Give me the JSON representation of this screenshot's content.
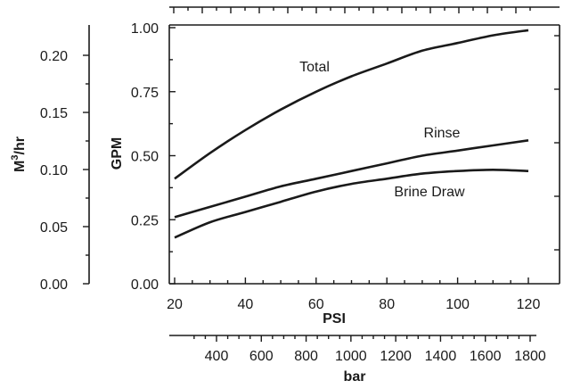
{
  "chart_data": {
    "type": "line",
    "xlabel": "PSI",
    "ylabel": "GPM",
    "xlim": [
      18,
      122
    ],
    "ylim": [
      0,
      1.0
    ],
    "x_ticks": [
      20,
      40,
      60,
      80,
      100,
      120
    ],
    "y_ticks": [
      "0.00",
      "0.25",
      "0.50",
      "0.75",
      "1.00"
    ],
    "secondary_y": {
      "label": "M³/hr",
      "label_main": "M",
      "label_sup": "3",
      "label_rest": "/hr",
      "ticks": [
        "0.00",
        "0.05",
        "0.10",
        "0.15",
        "0.20"
      ]
    },
    "secondary_x": {
      "label": "bar",
      "ticks": [
        400,
        600,
        800,
        1000,
        1200,
        1400,
        1600,
        1800
      ]
    },
    "series": [
      {
        "name": "Total",
        "x": [
          20,
          30,
          40,
          50,
          60,
          70,
          80,
          90,
          100,
          110,
          120
        ],
        "y": [
          0.41,
          0.51,
          0.6,
          0.68,
          0.75,
          0.81,
          0.86,
          0.91,
          0.94,
          0.97,
          0.99
        ]
      },
      {
        "name": "Rinse",
        "x": [
          20,
          30,
          40,
          50,
          60,
          70,
          80,
          90,
          100,
          110,
          120
        ],
        "y": [
          0.26,
          0.3,
          0.34,
          0.38,
          0.41,
          0.44,
          0.47,
          0.5,
          0.52,
          0.54,
          0.56
        ]
      },
      {
        "name": "Brine Draw",
        "x": [
          20,
          30,
          40,
          50,
          60,
          70,
          80,
          90,
          100,
          110,
          120
        ],
        "y": [
          0.18,
          0.24,
          0.28,
          0.32,
          0.36,
          0.39,
          0.41,
          0.43,
          0.44,
          0.445,
          0.44
        ]
      }
    ],
    "grid": false,
    "legend": "none"
  }
}
